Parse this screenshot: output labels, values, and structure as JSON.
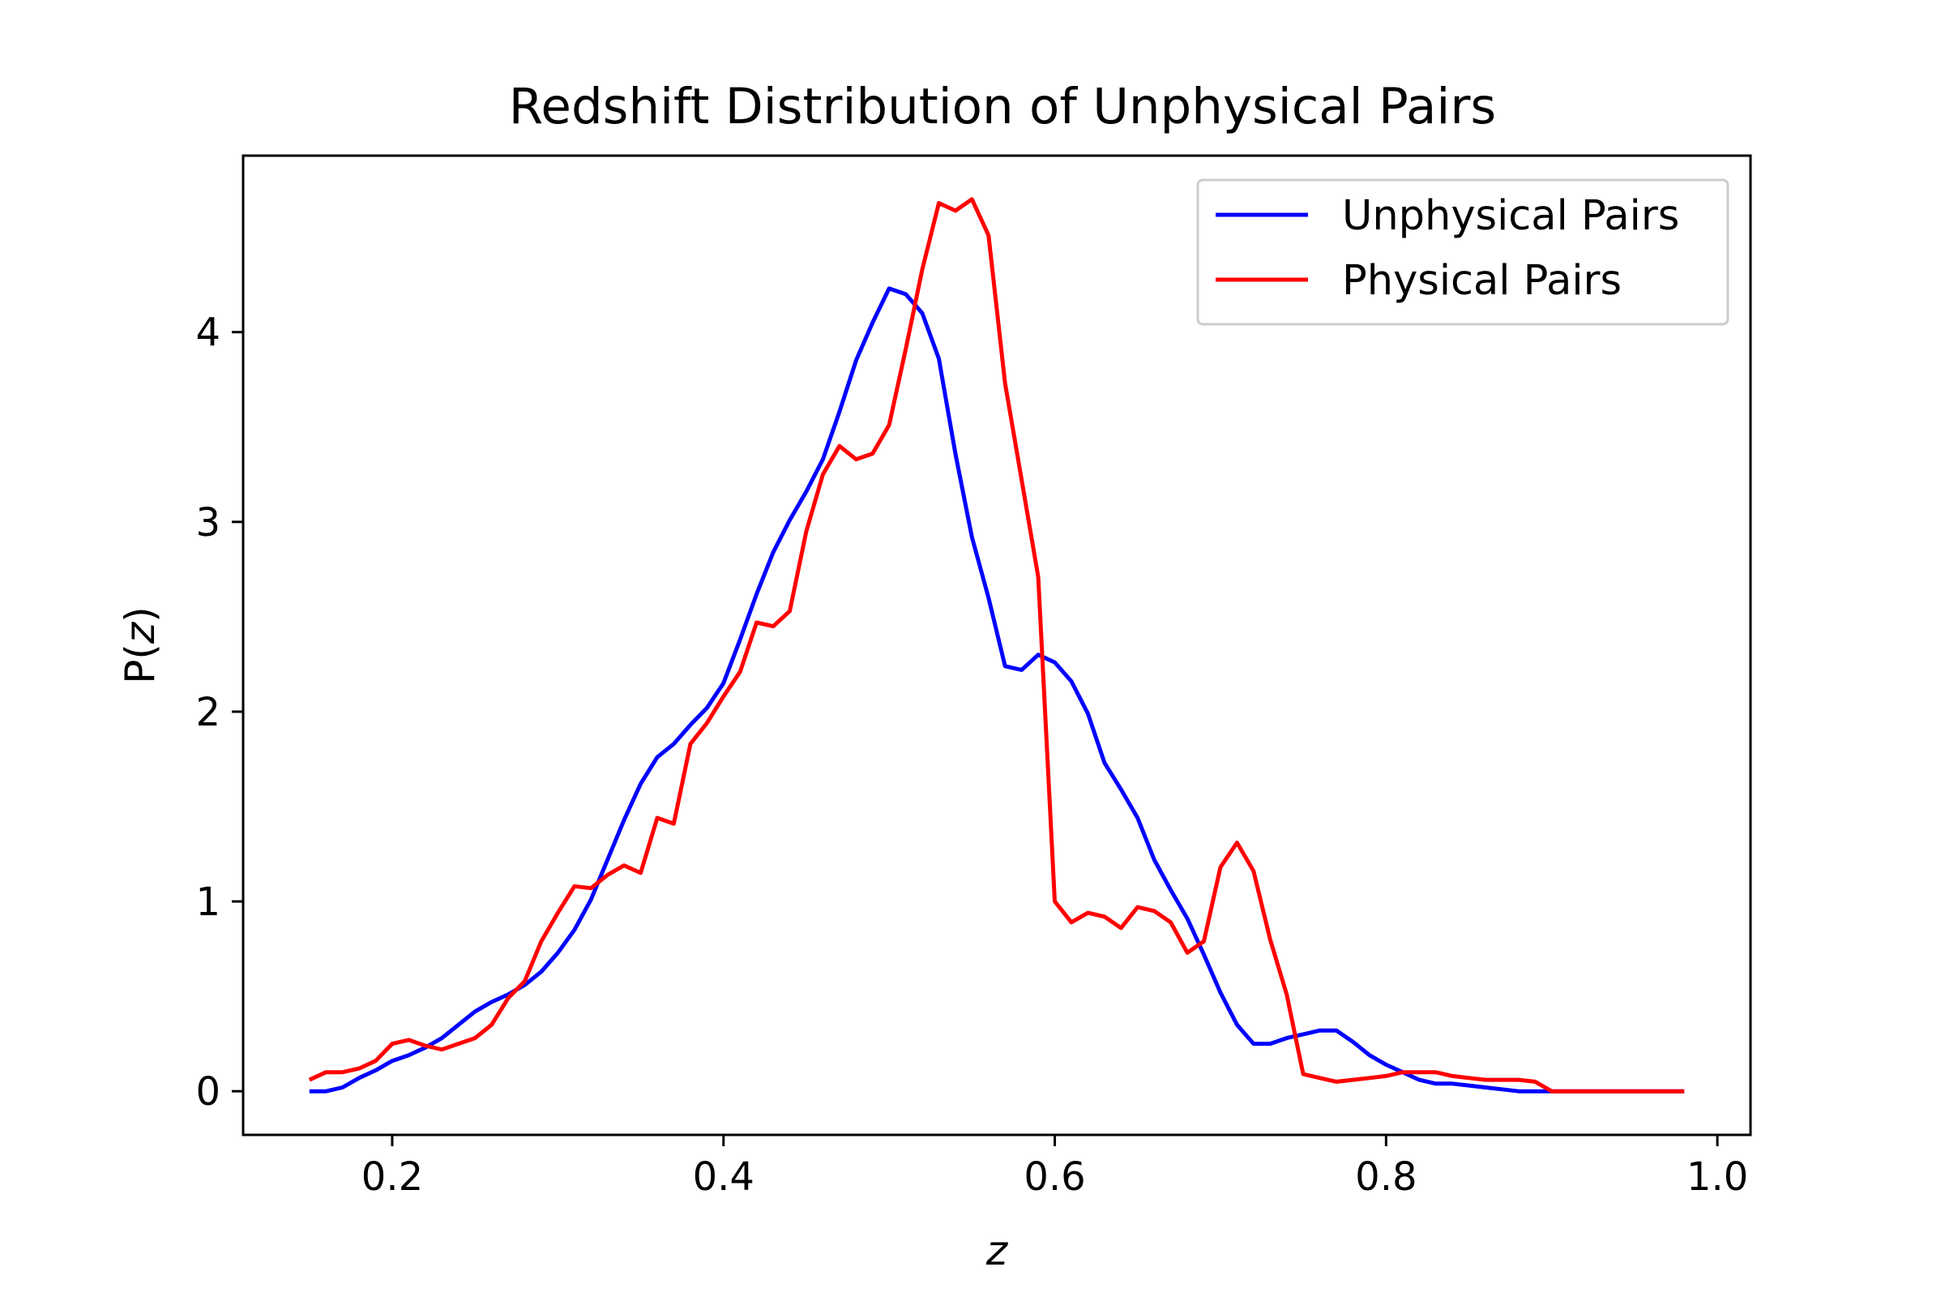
{
  "chart_data": {
    "type": "line",
    "title": "Redshift Distribution of Unphysical Pairs",
    "xlabel": "z",
    "ylabel": "P(z)",
    "xlim": [
      0.11,
      1.02
    ],
    "ylim": [
      -0.23,
      4.93
    ],
    "xticks": [
      0.2,
      0.4,
      0.6,
      0.8,
      1.0
    ],
    "xtick_labels": [
      "0.2",
      "0.4",
      "0.6",
      "0.8",
      "1.0"
    ],
    "yticks": [
      0,
      1,
      2,
      3,
      4
    ],
    "ytick_labels": [
      "0",
      "1",
      "2",
      "3",
      "4"
    ],
    "grid": false,
    "legend_position": "top-right",
    "x": [
      0.15,
      0.16,
      0.17,
      0.18,
      0.19,
      0.2,
      0.21,
      0.22,
      0.23,
      0.24,
      0.25,
      0.26,
      0.27,
      0.28,
      0.29,
      0.3,
      0.31,
      0.32,
      0.33,
      0.34,
      0.35,
      0.36,
      0.37,
      0.38,
      0.39,
      0.4,
      0.41,
      0.42,
      0.43,
      0.44,
      0.45,
      0.46,
      0.47,
      0.48,
      0.49,
      0.5,
      0.51,
      0.52,
      0.53,
      0.54,
      0.55,
      0.56,
      0.57,
      0.58,
      0.59,
      0.6,
      0.61,
      0.62,
      0.63,
      0.64,
      0.65,
      0.66,
      0.67,
      0.68,
      0.69,
      0.7,
      0.71,
      0.72,
      0.73,
      0.74,
      0.75,
      0.76,
      0.77,
      0.78,
      0.79,
      0.8,
      0.81,
      0.82,
      0.83,
      0.84,
      0.85,
      0.86,
      0.87,
      0.88,
      0.89,
      0.9,
      0.91,
      0.92,
      0.93,
      0.94,
      0.95,
      0.96,
      0.97,
      0.98
    ],
    "series": [
      {
        "name": "Unphysical Pairs",
        "color": "#0000ff",
        "values": [
          0.0,
          0.0,
          0.02,
          0.07,
          0.11,
          0.16,
          0.19,
          0.23,
          0.28,
          0.35,
          0.42,
          0.47,
          0.51,
          0.56,
          0.63,
          0.73,
          0.85,
          1.01,
          1.22,
          1.43,
          1.62,
          1.76,
          1.83,
          1.93,
          2.02,
          2.15,
          2.38,
          2.62,
          2.84,
          3.01,
          3.16,
          3.33,
          3.58,
          3.85,
          4.05,
          4.23,
          4.2,
          4.1,
          3.86,
          3.36,
          2.92,
          2.6,
          2.24,
          2.22,
          2.3,
          2.26,
          2.16,
          1.99,
          1.73,
          1.59,
          1.44,
          1.22,
          1.06,
          0.91,
          0.72,
          0.52,
          0.35,
          0.25,
          0.25,
          0.28,
          0.3,
          0.32,
          0.32,
          0.26,
          0.19,
          0.14,
          0.1,
          0.06,
          0.04,
          0.04,
          0.03,
          0.02,
          0.01,
          0.0,
          0.0,
          0.0,
          0.0,
          0.0,
          0.0,
          0.0,
          0.0,
          0.0,
          0.0,
          0.0
        ]
      },
      {
        "name": "Physical Pairs",
        "color": "#ff0000",
        "values": [
          0.06,
          0.1,
          0.1,
          0.12,
          0.16,
          0.25,
          0.27,
          0.24,
          0.22,
          0.25,
          0.28,
          0.35,
          0.49,
          0.58,
          0.79,
          0.94,
          1.08,
          1.07,
          1.14,
          1.19,
          1.15,
          1.44,
          1.41,
          1.83,
          1.94,
          2.08,
          2.21,
          2.47,
          2.45,
          2.53,
          2.95,
          3.25,
          3.4,
          3.33,
          3.36,
          3.51,
          3.91,
          4.33,
          4.68,
          4.64,
          4.7,
          4.51,
          3.73,
          3.22,
          2.71,
          1.0,
          0.89,
          0.94,
          0.92,
          0.86,
          0.97,
          0.95,
          0.89,
          0.73,
          0.79,
          1.18,
          1.31,
          1.16,
          0.8,
          0.51,
          0.09,
          0.07,
          0.05,
          0.06,
          0.07,
          0.08,
          0.1,
          0.1,
          0.1,
          0.08,
          0.07,
          0.06,
          0.06,
          0.06,
          0.05,
          0.0,
          0.0,
          0.0,
          0.0,
          0.0,
          0.0,
          0.0,
          0.0,
          0.0
        ]
      }
    ]
  }
}
